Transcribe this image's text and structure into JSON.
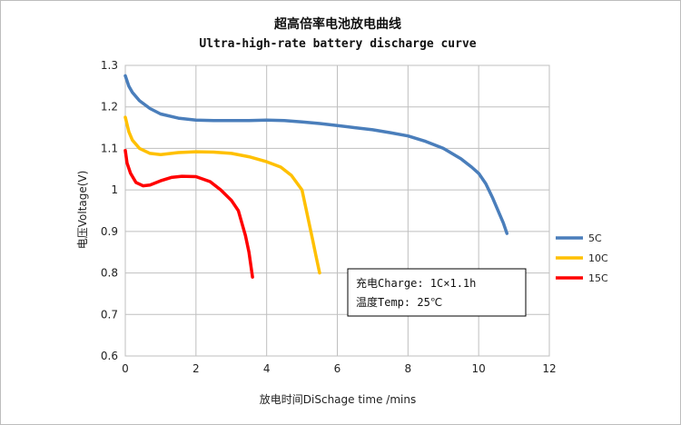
{
  "chart_data": {
    "type": "line",
    "title": "超高倍率电池放电曲线",
    "subtitle": "Ultra-high-rate battery discharge curve",
    "xlabel": "放电时间DiSchage time /mins",
    "ylabel": "电压Voltage(V)",
    "xlim": [
      0,
      12
    ],
    "ylim": [
      0.6,
      1.3
    ],
    "xticks": [
      "0",
      "2",
      "4",
      "6",
      "8",
      "10",
      "12"
    ],
    "yticks": [
      "0.6",
      "0.7",
      "0.8",
      "0.9",
      "1",
      "1.1",
      "1.2",
      "1.3"
    ],
    "grid": true,
    "legend_position": "right",
    "annotation": [
      "充电Charge: 1C×1.1h",
      "温度Temp: 25℃"
    ],
    "series": [
      {
        "name": "5C",
        "color": "#4a7ebb",
        "x": [
          0,
          0.1,
          0.2,
          0.4,
          0.7,
          1.0,
          1.5,
          2.0,
          2.5,
          3.0,
          3.5,
          4.0,
          4.5,
          5.0,
          5.5,
          6.0,
          6.5,
          7.0,
          7.5,
          8.0,
          8.5,
          9.0,
          9.5,
          9.8,
          10.0,
          10.2,
          10.4,
          10.6,
          10.7,
          10.8
        ],
        "y": [
          1.275,
          1.25,
          1.235,
          1.215,
          1.196,
          1.183,
          1.173,
          1.168,
          1.167,
          1.167,
          1.167,
          1.168,
          1.167,
          1.164,
          1.16,
          1.155,
          1.15,
          1.145,
          1.138,
          1.13,
          1.117,
          1.1,
          1.075,
          1.055,
          1.04,
          1.015,
          0.98,
          0.94,
          0.92,
          0.895
        ]
      },
      {
        "name": "10C",
        "color": "#ffc000",
        "x": [
          0,
          0.1,
          0.2,
          0.4,
          0.7,
          1.0,
          1.5,
          2.0,
          2.5,
          3.0,
          3.5,
          4.0,
          4.4,
          4.7,
          5.0,
          5.1,
          5.2,
          5.3,
          5.4,
          5.5
        ],
        "y": [
          1.175,
          1.14,
          1.12,
          1.1,
          1.088,
          1.085,
          1.09,
          1.092,
          1.091,
          1.088,
          1.08,
          1.068,
          1.055,
          1.035,
          1.0,
          0.96,
          0.92,
          0.88,
          0.84,
          0.8
        ]
      },
      {
        "name": "15C",
        "color": "#ff0000",
        "x": [
          0,
          0.05,
          0.15,
          0.3,
          0.5,
          0.7,
          1.0,
          1.3,
          1.6,
          2.0,
          2.4,
          2.7,
          3.0,
          3.2,
          3.3,
          3.4,
          3.5,
          3.6
        ],
        "y": [
          1.095,
          1.065,
          1.04,
          1.018,
          1.01,
          1.012,
          1.022,
          1.03,
          1.033,
          1.032,
          1.02,
          1.0,
          0.975,
          0.95,
          0.92,
          0.89,
          0.85,
          0.79
        ]
      }
    ]
  }
}
